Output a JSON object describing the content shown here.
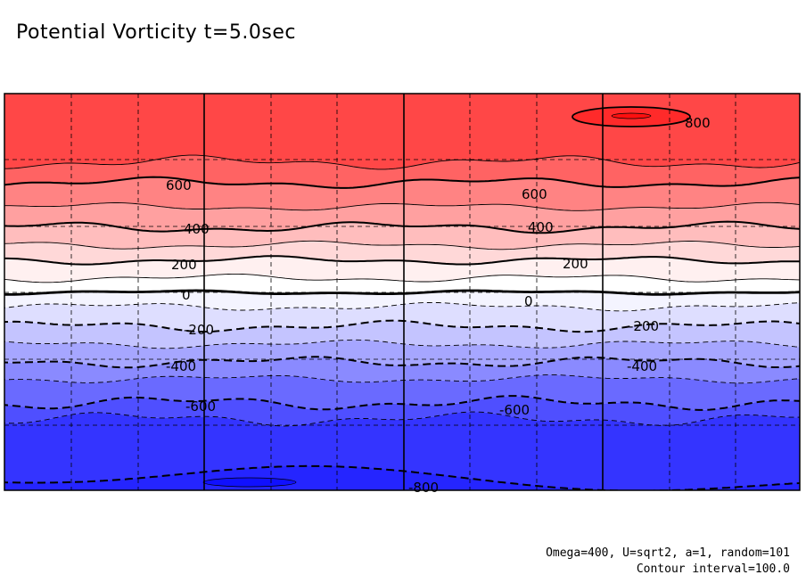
{
  "title": "Potential Vorticity t=5.0sec",
  "footnotes": {
    "params": "Omega=400, U=sqrt2, a=1, random=101",
    "interval": "Contour interval=100.0"
  },
  "chart_data": {
    "type": "contour",
    "title": "Potential Vorticity t=5.0sec",
    "variable": "Potential Vorticity",
    "time": "t=5.0sec",
    "contour_interval": 100.0,
    "positive_style": "solid",
    "negative_style": "dashed",
    "bands": [
      {
        "from": 700,
        "to": 800,
        "color": "#ff4747"
      },
      {
        "from": 600,
        "to": 700,
        "color": "#ff6363"
      },
      {
        "from": 500,
        "to": 600,
        "color": "#ff8383"
      },
      {
        "from": 400,
        "to": 500,
        "color": "#ffa0a0"
      },
      {
        "from": 300,
        "to": 400,
        "color": "#ffbdbd"
      },
      {
        "from": 200,
        "to": 300,
        "color": "#ffd8d8"
      },
      {
        "from": 100,
        "to": 200,
        "color": "#fff0f0"
      },
      {
        "from": 0,
        "to": 100,
        "color": "#ffffff"
      },
      {
        "from": -100,
        "to": 0,
        "color": "#f4f4ff"
      },
      {
        "from": -200,
        "to": -100,
        "color": "#dedeff"
      },
      {
        "from": -300,
        "to": -200,
        "color": "#c4c4ff"
      },
      {
        "from": -400,
        "to": -300,
        "color": "#a6a6ff"
      },
      {
        "from": -500,
        "to": -400,
        "color": "#8a8aff"
      },
      {
        "from": -600,
        "to": -500,
        "color": "#6a6aff"
      },
      {
        "from": -700,
        "to": -600,
        "color": "#4f4fff"
      },
      {
        "from": -800,
        "to": -700,
        "color": "#3434ff"
      }
    ],
    "contours": [
      {
        "level": 800,
        "label": "800"
      },
      {
        "level": 700,
        "label": ""
      },
      {
        "level": 600,
        "label": "600"
      },
      {
        "level": 500,
        "label": ""
      },
      {
        "level": 400,
        "label": "400"
      },
      {
        "level": 300,
        "label": ""
      },
      {
        "level": 200,
        "label": "200"
      },
      {
        "level": 100,
        "label": ""
      },
      {
        "level": 0,
        "label": "0"
      },
      {
        "level": -100,
        "label": ""
      },
      {
        "level": -200,
        "label": "-200"
      },
      {
        "level": -300,
        "label": ""
      },
      {
        "level": -400,
        "label": "-400"
      },
      {
        "level": -500,
        "label": ""
      },
      {
        "level": -600,
        "label": "-600"
      },
      {
        "level": -700,
        "label": ""
      },
      {
        "level": -800,
        "label": "-800"
      }
    ],
    "grid": {
      "major_columns": 3,
      "minor_columns_per_major": 3,
      "minor_rows": 12
    }
  }
}
